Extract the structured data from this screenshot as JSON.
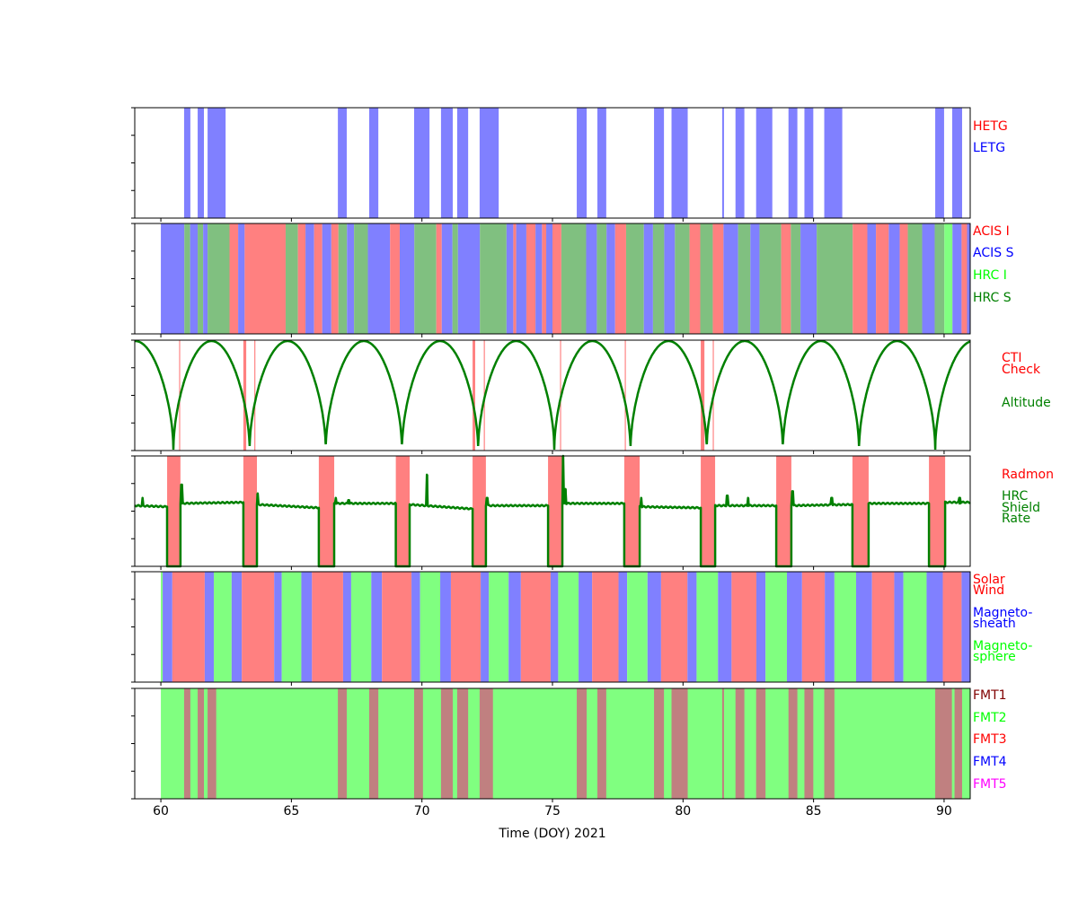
{
  "chart_data": {
    "type": "timeline",
    "xlabel": "Time (DOY) 2021",
    "xlim": [
      59,
      91
    ],
    "xticks": [
      60,
      65,
      70,
      75,
      80,
      85,
      90
    ],
    "colors": {
      "HETG": "#ff8080",
      "LETG": "#8080ff",
      "AI": "#ff8080",
      "AS": "#8080ff",
      "HI": "#80ff80",
      "HS": "#80c080",
      "SW": "#ff8080",
      "MSH": "#8080ff",
      "MSP": "#80ff80",
      "FMT1": "#c08080",
      "FMT2": "#80ff80",
      "FMT3": "#ff8080",
      "FMT4": "#8080ff",
      "FMT5": "#ff80ff",
      "CTI": "#ff8080",
      "RADMON": "#ff8080",
      "line": "#008000"
    },
    "panels": [
      {
        "id": "grating",
        "labels": [
          {
            "text": "HETG",
            "color": "#ff0000"
          },
          {
            "text": "LETG",
            "color": "#0000ff"
          }
        ],
        "intervals": [
          [
            60.89,
            61.13,
            "LETG"
          ],
          [
            61.41,
            61.65,
            "LETG"
          ],
          [
            61.79,
            62.48,
            "LETG"
          ],
          [
            66.78,
            67.12,
            "LETG"
          ],
          [
            67.98,
            68.33,
            "LETG"
          ],
          [
            69.7,
            70.29,
            "LETG"
          ],
          [
            70.73,
            71.18,
            "LETG"
          ],
          [
            71.35,
            71.77,
            "LETG"
          ],
          [
            72.21,
            72.94,
            "LETG"
          ],
          [
            75.93,
            76.31,
            "LETG"
          ],
          [
            76.72,
            77.06,
            "LETG"
          ],
          [
            78.89,
            79.27,
            "LETG"
          ],
          [
            79.56,
            80.18,
            "LETG"
          ],
          [
            81.5,
            81.57,
            "LETG"
          ],
          [
            82.01,
            82.35,
            "LETG"
          ],
          [
            82.8,
            83.42,
            "LETG"
          ],
          [
            84.04,
            84.38,
            "LETG"
          ],
          [
            84.65,
            84.99,
            "LETG"
          ],
          [
            85.41,
            86.1,
            "LETG"
          ],
          [
            89.66,
            90.0,
            "LETG"
          ],
          [
            90.31,
            90.69,
            "LETG"
          ]
        ]
      },
      {
        "id": "instrument",
        "labels": [
          {
            "text": "ACIS I",
            "color": "#ff0000"
          },
          {
            "text": "ACIS S",
            "color": "#0000ff"
          },
          {
            "text": "HRC I",
            "color": "#00ff00"
          },
          {
            "text": "HRC S",
            "color": "#008000"
          }
        ],
        "breakpoints": [
          [
            60.0,
            "AS"
          ],
          [
            60.9,
            "HS"
          ],
          [
            61.12,
            "AS"
          ],
          [
            61.41,
            "HS"
          ],
          [
            61.62,
            "AS"
          ],
          [
            61.79,
            "HS"
          ],
          [
            62.63,
            "AI"
          ],
          [
            62.96,
            "AS"
          ],
          [
            63.21,
            "AI"
          ],
          [
            64.78,
            "HS"
          ],
          [
            65.25,
            "AI"
          ],
          [
            65.54,
            "AS"
          ],
          [
            65.87,
            "AI"
          ],
          [
            66.18,
            "AS"
          ],
          [
            66.53,
            "AI"
          ],
          [
            66.8,
            "HS"
          ],
          [
            67.13,
            "AS"
          ],
          [
            67.4,
            "HS"
          ],
          [
            67.93,
            "AS"
          ],
          [
            68.78,
            "AI"
          ],
          [
            69.15,
            "AS"
          ],
          [
            69.71,
            "HS"
          ],
          [
            70.55,
            "AI"
          ],
          [
            70.76,
            "AS"
          ],
          [
            71.17,
            "HS"
          ],
          [
            71.38,
            "AS"
          ],
          [
            72.22,
            "HS"
          ],
          [
            73.24,
            "AS"
          ],
          [
            73.5,
            "AI"
          ],
          [
            73.61,
            "AS"
          ],
          [
            74.0,
            "AI"
          ],
          [
            74.35,
            "AS"
          ],
          [
            74.6,
            "AI"
          ],
          [
            74.76,
            "AS"
          ],
          [
            75.0,
            "AI"
          ],
          [
            75.34,
            "HS"
          ],
          [
            76.29,
            "AS"
          ],
          [
            76.7,
            "HS"
          ],
          [
            77.07,
            "AS"
          ],
          [
            77.4,
            "AI"
          ],
          [
            77.82,
            "HS"
          ],
          [
            78.5,
            "AS"
          ],
          [
            78.85,
            "HS"
          ],
          [
            79.28,
            "AS"
          ],
          [
            79.69,
            "HS"
          ],
          [
            80.25,
            "AI"
          ],
          [
            80.66,
            "HS"
          ],
          [
            81.14,
            "AI"
          ],
          [
            81.55,
            "AS"
          ],
          [
            82.11,
            "HS"
          ],
          [
            82.58,
            "AS"
          ],
          [
            82.93,
            "HS"
          ],
          [
            83.76,
            "AI"
          ],
          [
            84.13,
            "HS"
          ],
          [
            84.5,
            "AS"
          ],
          [
            85.12,
            "HS"
          ],
          [
            86.5,
            "AI"
          ],
          [
            87.06,
            "AS"
          ],
          [
            87.39,
            "AI"
          ],
          [
            87.88,
            "AS"
          ],
          [
            88.3,
            "AI"
          ],
          [
            88.61,
            "HS"
          ],
          [
            89.16,
            "AS"
          ],
          [
            89.64,
            "HS"
          ],
          [
            90.01,
            "HI"
          ],
          [
            90.32,
            "AS"
          ],
          [
            90.67,
            "AI"
          ],
          [
            90.88,
            "AS"
          ]
        ],
        "end": 91
      },
      {
        "id": "altitude",
        "labels": [
          {
            "text": "CTI",
            "color": "#ff0000"
          },
          {
            "text": "Check",
            "color": "#ff0000"
          },
          {
            "text": "Altitude",
            "color": "#008000"
          }
        ],
        "intervals": [
          [
            60.7,
            60.74,
            "CTI"
          ],
          [
            63.16,
            63.27,
            "CTI"
          ],
          [
            63.58,
            63.62,
            "CTI"
          ],
          [
            71.94,
            72.04,
            "CTI"
          ],
          [
            72.37,
            72.41,
            "CTI"
          ],
          [
            75.29,
            75.33,
            "CTI"
          ],
          [
            77.77,
            77.81,
            "CTI"
          ],
          [
            80.68,
            80.82,
            "CTI"
          ],
          [
            81.14,
            81.18,
            "CTI"
          ]
        ],
        "altitude": {
          "first_minimum_doy": 60.48,
          "period_days": 2.918,
          "min_frac": 0.0,
          "max_frac": 1.0
        }
      },
      {
        "id": "radmon",
        "labels": [
          {
            "text": "Radmon",
            "color": "#ff0000"
          },
          {
            "text": "HRC",
            "color": "#008000"
          },
          {
            "text": "Shield",
            "color": "#008000"
          },
          {
            "text": "Rate",
            "color": "#008000"
          }
        ],
        "intervals": [
          [
            60.24,
            60.75,
            "RADMON"
          ],
          [
            63.16,
            63.68,
            "RADMON"
          ],
          [
            66.05,
            66.64,
            "RADMON"
          ],
          [
            69.0,
            69.53,
            "RADMON"
          ],
          [
            71.94,
            72.45,
            "RADMON"
          ],
          [
            74.83,
            75.38,
            "RADMON"
          ],
          [
            77.75,
            78.34,
            "RADMON"
          ],
          [
            80.68,
            81.23,
            "RADMON"
          ],
          [
            83.57,
            84.15,
            "RADMON"
          ],
          [
            86.49,
            87.11,
            "RADMON"
          ],
          [
            89.42,
            90.04,
            "RADMON"
          ]
        ],
        "rate_segments": [
          [
            59.0,
            60.24,
            0.55,
            0.54
          ],
          [
            60.75,
            63.16,
            0.57,
            0.58
          ],
          [
            63.68,
            66.05,
            0.56,
            0.53
          ],
          [
            66.64,
            69.0,
            0.57,
            0.57
          ],
          [
            69.53,
            71.94,
            0.56,
            0.52
          ],
          [
            72.45,
            74.83,
            0.55,
            0.55
          ],
          [
            75.38,
            77.75,
            0.57,
            0.57
          ],
          [
            78.34,
            80.68,
            0.54,
            0.53
          ],
          [
            81.23,
            83.57,
            0.55,
            0.55
          ],
          [
            84.15,
            86.49,
            0.55,
            0.56
          ],
          [
            87.11,
            89.42,
            0.57,
            0.57
          ],
          [
            90.04,
            91.0,
            0.58,
            0.58
          ]
        ],
        "rate_spikes": [
          [
            59.3,
            0.62
          ],
          [
            60.8,
            0.74
          ],
          [
            63.7,
            0.66
          ],
          [
            66.7,
            0.62
          ],
          [
            67.2,
            0.6
          ],
          [
            70.2,
            0.83
          ],
          [
            72.5,
            0.62
          ],
          [
            75.4,
            1.0
          ],
          [
            75.5,
            0.7
          ],
          [
            78.4,
            0.62
          ],
          [
            81.7,
            0.64
          ],
          [
            82.5,
            0.62
          ],
          [
            84.2,
            0.68
          ],
          [
            85.7,
            0.62
          ],
          [
            90.6,
            0.62
          ]
        ]
      },
      {
        "id": "radiation-zone",
        "labels": [
          {
            "text": "Solar",
            "color": "#ff0000"
          },
          {
            "text": "Wind",
            "color": "#ff0000"
          },
          {
            "text": "Magneto-",
            "color": "#0000ff"
          },
          {
            "text": "sheath",
            "color": "#0000ff"
          },
          {
            "text": "Magneto-",
            "color": "#00ff00"
          },
          {
            "text": "sphere",
            "color": "#00ff00"
          }
        ],
        "breakpoints": [
          [
            60.0,
            "MSP"
          ],
          [
            60.07,
            "MSH"
          ],
          [
            60.44,
            "SW"
          ],
          [
            61.68,
            "MSH"
          ],
          [
            62.03,
            "MSP"
          ],
          [
            62.71,
            "MSH"
          ],
          [
            63.1,
            "SW"
          ],
          [
            64.34,
            "MSH"
          ],
          [
            64.63,
            "MSP"
          ],
          [
            65.38,
            "MSH"
          ],
          [
            65.79,
            "SW"
          ],
          [
            66.98,
            "MSH"
          ],
          [
            67.29,
            "MSP"
          ],
          [
            68.06,
            "MSH"
          ],
          [
            68.47,
            "SW"
          ],
          [
            69.6,
            "MSH"
          ],
          [
            69.93,
            "MSP"
          ],
          [
            70.7,
            "MSH"
          ],
          [
            71.11,
            "SW"
          ],
          [
            72.25,
            "MSH"
          ],
          [
            72.56,
            "MSP"
          ],
          [
            73.32,
            "MSH"
          ],
          [
            73.79,
            "SW"
          ],
          [
            74.93,
            "MSH"
          ],
          [
            75.22,
            "MSP"
          ],
          [
            76.0,
            "MSH"
          ],
          [
            76.52,
            "SW"
          ],
          [
            77.53,
            "MSH"
          ],
          [
            77.86,
            "MSP"
          ],
          [
            78.64,
            "MSH"
          ],
          [
            79.16,
            "SW"
          ],
          [
            80.17,
            "MSH"
          ],
          [
            80.52,
            "MSP"
          ],
          [
            81.34,
            "MSH"
          ],
          [
            81.86,
            "SW"
          ],
          [
            82.81,
            "MSH"
          ],
          [
            83.16,
            "MSP"
          ],
          [
            83.98,
            "MSH"
          ],
          [
            84.56,
            "SW"
          ],
          [
            85.43,
            "MSH"
          ],
          [
            85.8,
            "MSP"
          ],
          [
            86.63,
            "MSH"
          ],
          [
            87.24,
            "SW"
          ],
          [
            88.09,
            "MSH"
          ],
          [
            88.44,
            "MSP"
          ],
          [
            89.33,
            "MSH"
          ],
          [
            89.95,
            "SW"
          ],
          [
            90.67,
            "MSH"
          ]
        ],
        "end": 91
      },
      {
        "id": "format",
        "labels": [
          {
            "text": "FMT1",
            "color": "#800000"
          },
          {
            "text": "FMT2",
            "color": "#00ff00"
          },
          {
            "text": "FMT3",
            "color": "#ff0000"
          },
          {
            "text": "FMT4",
            "color": "#0000ff"
          },
          {
            "text": "FMT5",
            "color": "#ff00ff"
          }
        ],
        "background": [
          60.0,
          91.0,
          "FMT2"
        ],
        "intervals": [
          [
            60.89,
            61.13,
            "FMT1"
          ],
          [
            61.41,
            61.65,
            "FMT1"
          ],
          [
            61.79,
            62.12,
            "FMT1"
          ],
          [
            66.78,
            67.12,
            "FMT1"
          ],
          [
            67.98,
            68.33,
            "FMT1"
          ],
          [
            69.7,
            70.04,
            "FMT1"
          ],
          [
            70.73,
            71.18,
            "FMT1"
          ],
          [
            71.35,
            71.77,
            "FMT1"
          ],
          [
            72.21,
            72.72,
            "FMT1"
          ],
          [
            75.93,
            76.31,
            "FMT1"
          ],
          [
            76.72,
            77.06,
            "FMT1"
          ],
          [
            78.89,
            79.27,
            "FMT1"
          ],
          [
            79.56,
            80.18,
            "FMT1"
          ],
          [
            81.5,
            81.57,
            "FMT1"
          ],
          [
            82.01,
            82.35,
            "FMT1"
          ],
          [
            82.8,
            83.16,
            "FMT1"
          ],
          [
            84.04,
            84.38,
            "FMT1"
          ],
          [
            84.65,
            84.99,
            "FMT1"
          ],
          [
            85.41,
            85.8,
            "FMT1"
          ],
          [
            89.66,
            90.3,
            "FMT1"
          ],
          [
            90.4,
            90.69,
            "FMT1"
          ]
        ]
      }
    ]
  }
}
